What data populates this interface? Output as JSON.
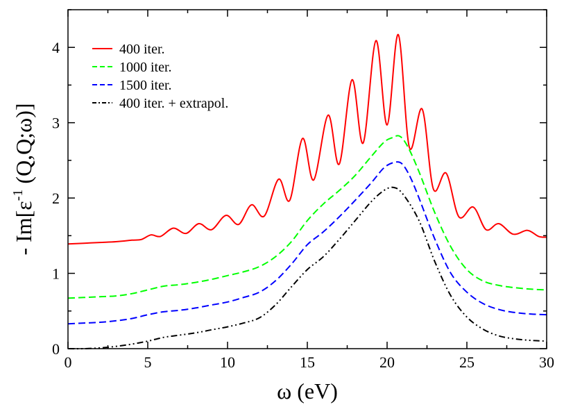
{
  "chart_data": {
    "type": "line",
    "title": "",
    "xlabel": "ω (eV)",
    "ylabel_parts": {
      "prefix": "- Im[ε",
      "exponent": "-1",
      "suffix": " (Q,Q;ω)]"
    },
    "xlim": [
      0,
      30
    ],
    "ylim": [
      0,
      4.5
    ],
    "xticks": [
      0,
      5,
      10,
      15,
      20,
      25,
      30
    ],
    "yticks": [
      0,
      1,
      2,
      3,
      4
    ],
    "xtick_labels": [
      "0",
      "5",
      "10",
      "15",
      "20",
      "25",
      "30"
    ],
    "ytick_labels": [
      "0",
      "1",
      "2",
      "3",
      "4"
    ],
    "grid": false,
    "legend_position": "top-left",
    "series": [
      {
        "name": "400 iter.",
        "color": "#ff0000",
        "style": "solid",
        "x": [
          0,
          1,
          2,
          3,
          4,
          4.6,
          5.2,
          5.8,
          6.6,
          7.4,
          8.2,
          9.0,
          9.9,
          10.7,
          11.5,
          12.3,
          13.2,
          13.9,
          14.7,
          15.4,
          16.3,
          17.0,
          17.8,
          18.5,
          19.3,
          20.0,
          20.7,
          21.4,
          22.2,
          22.9,
          23.7,
          24.5,
          25.4,
          26.2,
          27.0,
          27.9,
          28.8,
          29.5,
          30
        ],
        "values": [
          1.39,
          1.4,
          1.41,
          1.42,
          1.44,
          1.45,
          1.51,
          1.49,
          1.6,
          1.53,
          1.66,
          1.58,
          1.77,
          1.65,
          1.91,
          1.76,
          2.25,
          1.97,
          2.79,
          2.24,
          3.1,
          2.45,
          3.57,
          2.73,
          4.09,
          2.97,
          4.17,
          2.67,
          3.18,
          2.12,
          2.33,
          1.75,
          1.88,
          1.58,
          1.66,
          1.52,
          1.57,
          1.49,
          1.48
        ]
      },
      {
        "name": "1000 iter.",
        "color": "#00ff00",
        "style": "dashed",
        "x": [
          0,
          1,
          2,
          3,
          4,
          5,
          6,
          7,
          8,
          9,
          10,
          11,
          12,
          13,
          14,
          15,
          16,
          17,
          18,
          19,
          19.8,
          20.3,
          20.8,
          21.3,
          22,
          23,
          24,
          25,
          26,
          27,
          28,
          29,
          30
        ],
        "values": [
          0.67,
          0.68,
          0.69,
          0.7,
          0.73,
          0.78,
          0.83,
          0.85,
          0.88,
          0.92,
          0.97,
          1.02,
          1.09,
          1.22,
          1.42,
          1.7,
          1.92,
          2.1,
          2.3,
          2.55,
          2.74,
          2.8,
          2.82,
          2.68,
          2.35,
          1.8,
          1.35,
          1.05,
          0.9,
          0.84,
          0.81,
          0.79,
          0.78
        ]
      },
      {
        "name": "1500 iter.",
        "color": "#0000ff",
        "style": "dashed",
        "x": [
          0,
          1,
          2,
          3,
          4,
          5,
          6,
          7,
          8,
          9,
          10,
          11,
          12,
          13,
          14,
          15,
          16,
          17,
          18,
          19,
          19.8,
          20.4,
          20.9,
          21.4,
          22,
          23,
          24,
          25,
          26,
          27,
          28,
          29,
          30
        ],
        "values": [
          0.33,
          0.34,
          0.35,
          0.37,
          0.4,
          0.45,
          0.49,
          0.51,
          0.54,
          0.58,
          0.62,
          0.68,
          0.75,
          0.9,
          1.12,
          1.38,
          1.55,
          1.75,
          1.97,
          2.2,
          2.4,
          2.47,
          2.46,
          2.3,
          2.0,
          1.45,
          1.0,
          0.75,
          0.6,
          0.52,
          0.48,
          0.46,
          0.45
        ]
      },
      {
        "name": "400 iter. + extrapol.",
        "color": "#000000",
        "style": "dashdot",
        "x": [
          0,
          1,
          2,
          3,
          4,
          5,
          6,
          7,
          8,
          9,
          10,
          11,
          12,
          13,
          14,
          15,
          16,
          17,
          18,
          19,
          19.8,
          20.4,
          21,
          22,
          23,
          24,
          25,
          26,
          27,
          28,
          29,
          30
        ],
        "values": [
          0.0,
          0.0,
          0.01,
          0.03,
          0.06,
          0.1,
          0.15,
          0.18,
          0.21,
          0.25,
          0.29,
          0.34,
          0.41,
          0.58,
          0.82,
          1.05,
          1.22,
          1.45,
          1.7,
          1.95,
          2.1,
          2.14,
          2.05,
          1.7,
          1.15,
          0.7,
          0.42,
          0.26,
          0.17,
          0.13,
          0.11,
          0.1
        ]
      }
    ]
  }
}
